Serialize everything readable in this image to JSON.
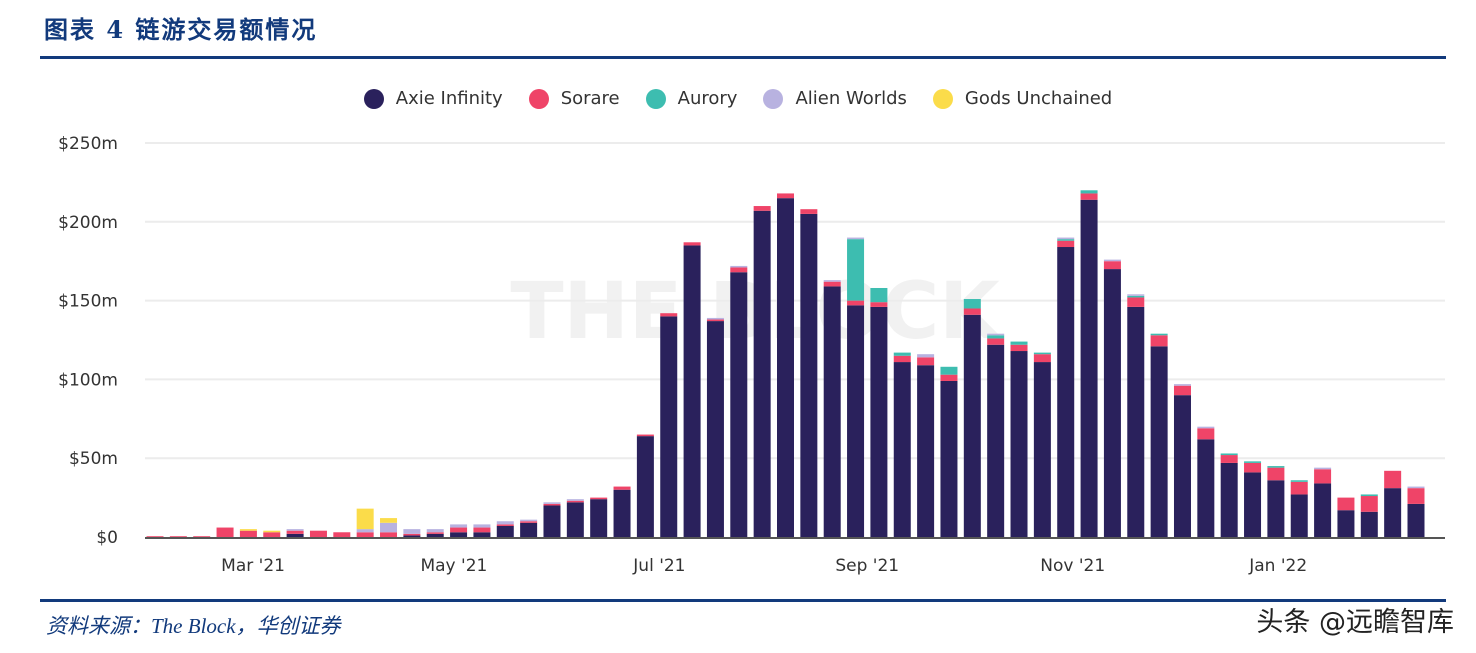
{
  "header": {
    "title": "图表 4   链游交易额情况"
  },
  "footer": {
    "source": "资料来源：The Block，华创证券",
    "watermark": "头条 @远瞻智库"
  },
  "chart_watermark": "THE BLOCK",
  "chart_data": {
    "type": "bar",
    "stacked": true,
    "title": "链游交易额情况",
    "xlabel": "",
    "ylabel": "",
    "ylim": [
      0,
      250
    ],
    "y_ticks": [
      {
        "value": 0,
        "label": "$0"
      },
      {
        "value": 50,
        "label": "$50m"
      },
      {
        "value": 100,
        "label": "$100m"
      },
      {
        "value": 150,
        "label": "$150m"
      },
      {
        "value": 200,
        "label": "$200m"
      },
      {
        "value": 250,
        "label": "$250m"
      }
    ],
    "x_ticks": [
      {
        "label": "Mar '21",
        "at_index": 4.2
      },
      {
        "label": "May '21",
        "at_index": 12.8
      },
      {
        "label": "Jul '21",
        "at_index": 21.6
      },
      {
        "label": "Sep '21",
        "at_index": 30.5
      },
      {
        "label": "Nov '21",
        "at_index": 39.3
      },
      {
        "label": "Jan '22",
        "at_index": 48.1
      }
    ],
    "legend_placement": "top-center",
    "grid": true,
    "series": [
      {
        "name": "Axie Infinity",
        "color": "#2a215c",
        "values": [
          0,
          0,
          0,
          0,
          0,
          0,
          2,
          0,
          0,
          0,
          0,
          1,
          2,
          3,
          3,
          7,
          9,
          20,
          22,
          24,
          30,
          64,
          140,
          185,
          137,
          168,
          207,
          215,
          205,
          159,
          147,
          146,
          111,
          109,
          99,
          141,
          122,
          118,
          111,
          184,
          214,
          170,
          146,
          121,
          90,
          62,
          47,
          41,
          36,
          27,
          34,
          17,
          16,
          31,
          21
        ]
      },
      {
        "name": "Sorare",
        "color": "#ef4468",
        "values": [
          0.5,
          0.5,
          0.5,
          6,
          4,
          3,
          2,
          4,
          3,
          3,
          3,
          1,
          1,
          3,
          3,
          1,
          1,
          1,
          1,
          1,
          2,
          1,
          2,
          2,
          1,
          3,
          3,
          3,
          3,
          3,
          3,
          3,
          4,
          5,
          4,
          4,
          4,
          4,
          5,
          4,
          4,
          5,
          6,
          7,
          6,
          7,
          5,
          6,
          8,
          8,
          9,
          8,
          10,
          11,
          10
        ]
      },
      {
        "name": "Aurory",
        "color": "#3dbdb0",
        "values": [
          0,
          0,
          0,
          0,
          0,
          0,
          0,
          0,
          0,
          0,
          0,
          0,
          0,
          0,
          0,
          0,
          0,
          0,
          0,
          0,
          0,
          0,
          0,
          0,
          0,
          0,
          0,
          0,
          0,
          0,
          39,
          9,
          2,
          0,
          5,
          6,
          2,
          2,
          1,
          1,
          2,
          0,
          1,
          1,
          0,
          0,
          1,
          1,
          1,
          1,
          0,
          0,
          1,
          0,
          0
        ]
      },
      {
        "name": "Alien Worlds",
        "color": "#b8b2e0",
        "values": [
          0,
          0,
          0,
          0,
          0,
          0,
          1,
          0,
          0,
          2,
          6,
          3,
          2,
          2,
          2,
          2,
          1,
          1,
          1,
          0,
          0,
          0,
          0,
          0,
          1,
          1,
          0,
          0,
          0,
          1,
          1,
          0,
          0,
          2,
          0,
          0,
          1,
          0,
          0,
          1,
          0,
          1,
          1,
          0,
          1,
          1,
          0,
          0,
          0,
          0,
          1,
          0,
          0,
          0,
          1
        ]
      },
      {
        "name": "Gods Unchained",
        "color": "#fbdc4a",
        "values": [
          0,
          0,
          0,
          0,
          1,
          1,
          0,
          0,
          0,
          13,
          3,
          0,
          0,
          0,
          0,
          0,
          0,
          0,
          0,
          0,
          0,
          0,
          0,
          0,
          0,
          0,
          0,
          0,
          0,
          0,
          0,
          0,
          0,
          0,
          0,
          0,
          0,
          0,
          0,
          0,
          0,
          0,
          0,
          0,
          0,
          0,
          0,
          0,
          0,
          0,
          0,
          0,
          0,
          0,
          0
        ]
      }
    ]
  }
}
